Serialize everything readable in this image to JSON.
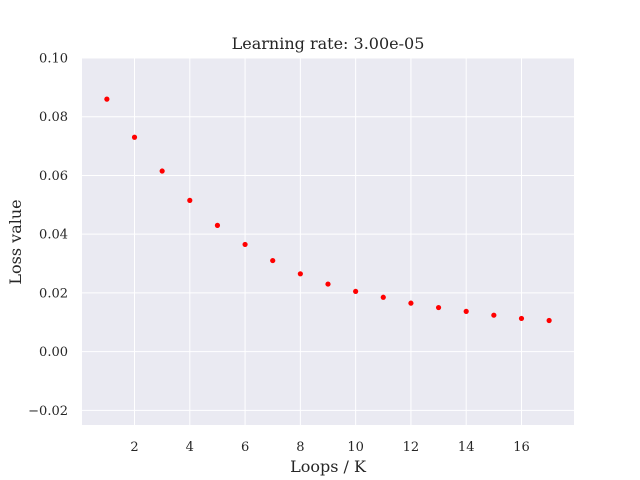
{
  "chart_data": {
    "type": "scatter",
    "title": "Learning rate: 3.00e-05",
    "xlabel": "Loops / K",
    "ylabel": "Loss value",
    "xlim": [
      0.1,
      17.9
    ],
    "ylim": [
      -0.025,
      0.1
    ],
    "xticks": [
      2,
      4,
      6,
      8,
      10,
      12,
      14,
      16
    ],
    "xtick_labels": [
      "2",
      "4",
      "6",
      "8",
      "10",
      "12",
      "14",
      "16"
    ],
    "yticks": [
      -0.02,
      0.0,
      0.02,
      0.04,
      0.06,
      0.08,
      0.1
    ],
    "ytick_labels": [
      "−0.02",
      "0.00",
      "0.02",
      "0.04",
      "0.06",
      "0.08",
      "0.10"
    ],
    "grid": true,
    "marker_color": "#ff0000",
    "background_color": "#eaeaf2",
    "x": [
      1,
      2,
      3,
      4,
      5,
      6,
      7,
      8,
      9,
      10,
      11,
      12,
      13,
      14,
      15,
      16,
      17
    ],
    "y": [
      0.086,
      0.073,
      0.0615,
      0.0515,
      0.043,
      0.0365,
      0.031,
      0.0265,
      0.023,
      0.0205,
      0.0185,
      0.0165,
      0.015,
      0.0137,
      0.0124,
      0.0113,
      0.0106
    ]
  }
}
